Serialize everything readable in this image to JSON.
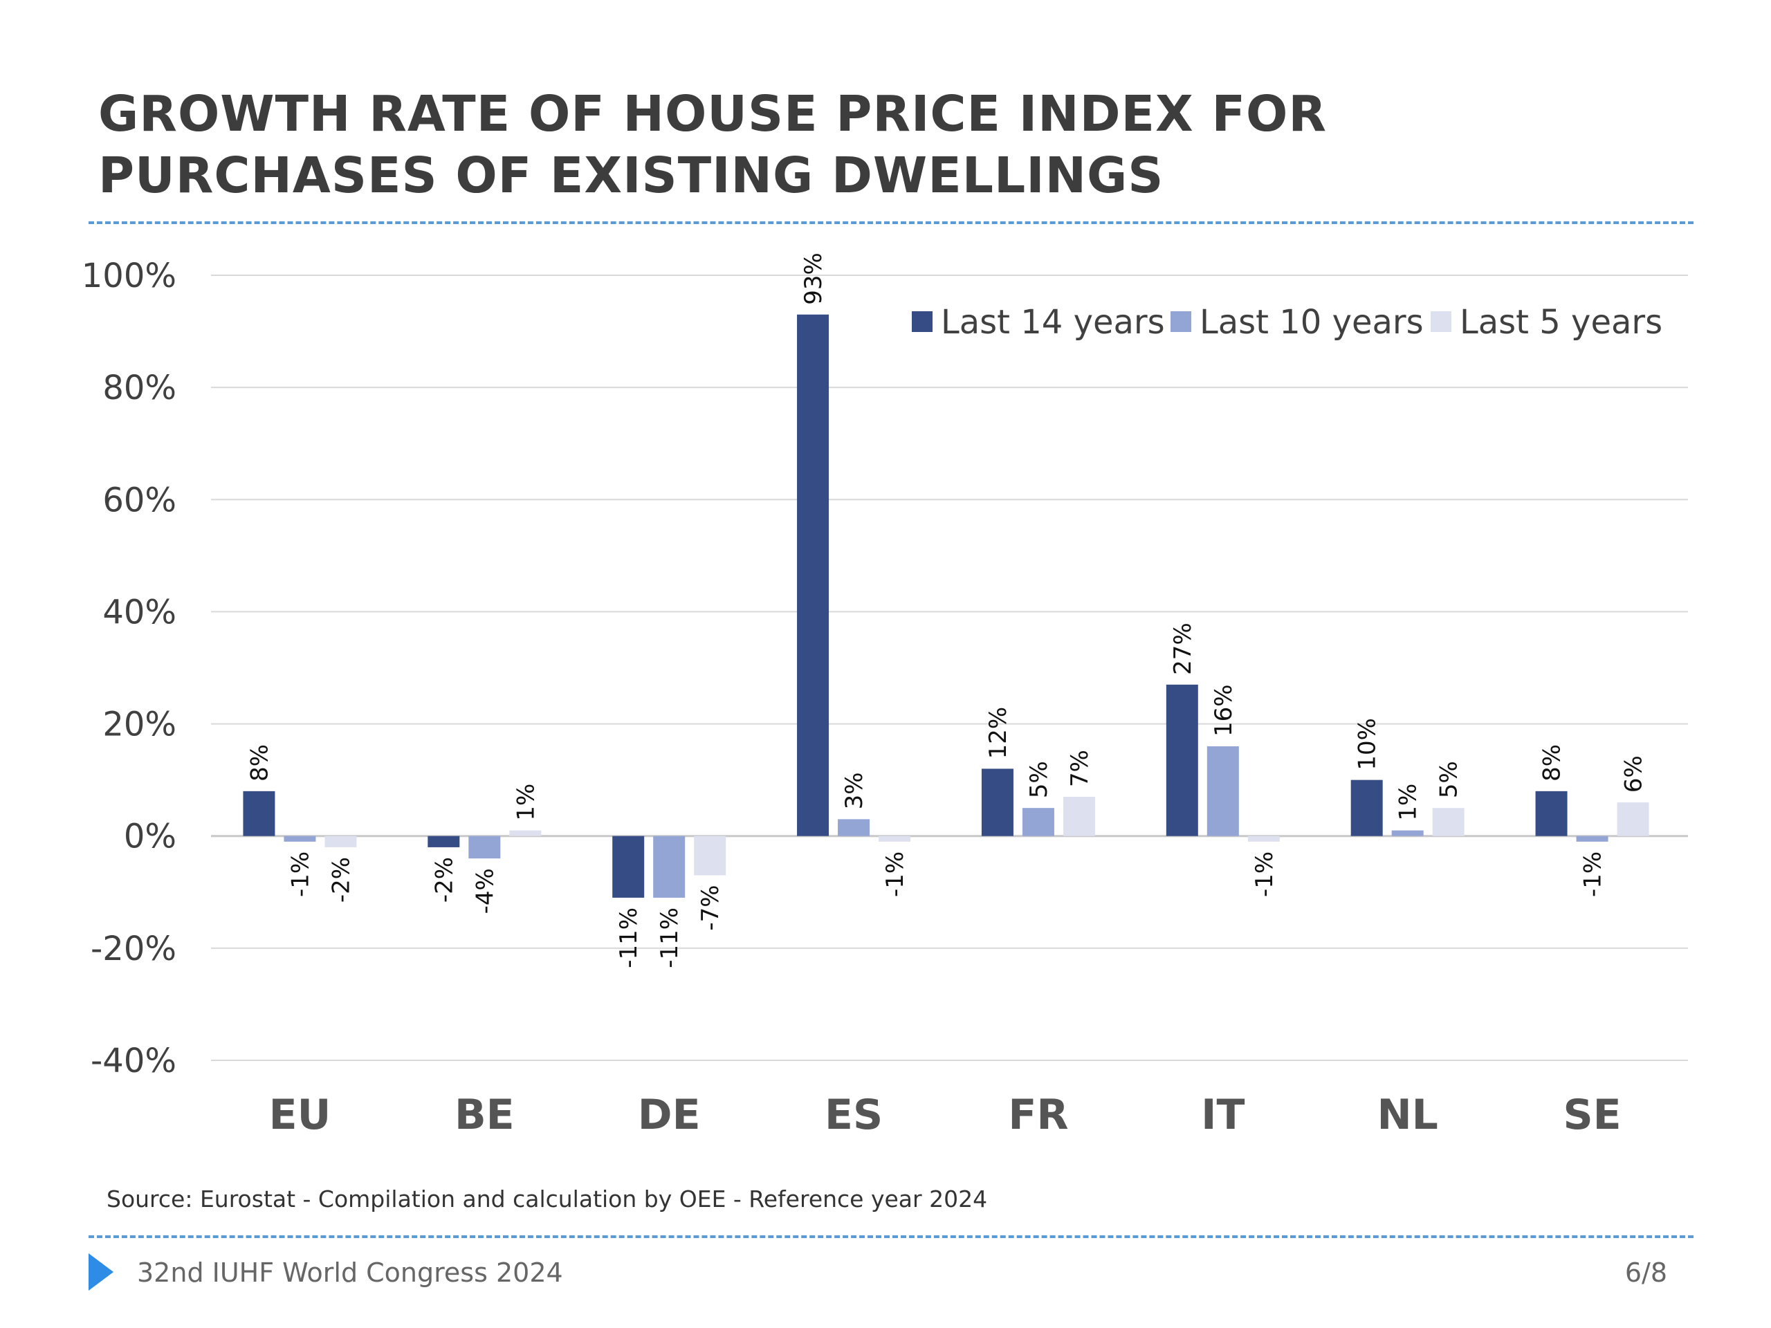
{
  "title_lines": [
    "GROWTH RATE OF HOUSE PRICE INDEX FOR",
    "PURCHASES OF EXISTING DWELLINGS"
  ],
  "source": "Source: Eurostat - Compilation and calculation by OEE - Reference year 2024",
  "footer": {
    "text": "32nd IUHF World Congress 2024",
    "page": "6/8"
  },
  "colors": {
    "accent": "#5b9bd5",
    "arrow": "#2e8be6"
  },
  "chart_data": {
    "type": "bar",
    "categories": [
      "EU",
      "BE",
      "DE",
      "ES",
      "FR",
      "IT",
      "NL",
      "SE"
    ],
    "series": [
      {
        "name": "Last 14 years",
        "color": "#354c84",
        "values": [
          8,
          -2,
          -11,
          93,
          12,
          27,
          10,
          8
        ],
        "labels": [
          "8%",
          "-2%",
          "-11%",
          "93%",
          "12%",
          "27%",
          "10%",
          "8%"
        ]
      },
      {
        "name": "Last 10 years",
        "color": "#93a5d5",
        "values": [
          -1,
          -4,
          -11,
          3,
          5,
          16,
          1,
          -1
        ],
        "labels": [
          "-1%",
          "-4%",
          "-11%",
          "3%",
          "5%",
          "16%",
          "1%",
          "-1%"
        ]
      },
      {
        "name": "Last 5 years",
        "color": "#dde1ef",
        "values": [
          -2,
          1,
          -7,
          -1,
          7,
          -1,
          5,
          6
        ],
        "labels": [
          "-2%",
          "1%",
          "-7%",
          "-1%",
          "7%",
          "-1%",
          "5%",
          "6%"
        ]
      }
    ],
    "yticks": [
      "-40%",
      "-20%",
      "0%",
      "20%",
      "40%",
      "60%",
      "80%",
      "100%"
    ],
    "ylim": [
      -40,
      100
    ],
    "grid": true,
    "legend_position": "top-right"
  }
}
